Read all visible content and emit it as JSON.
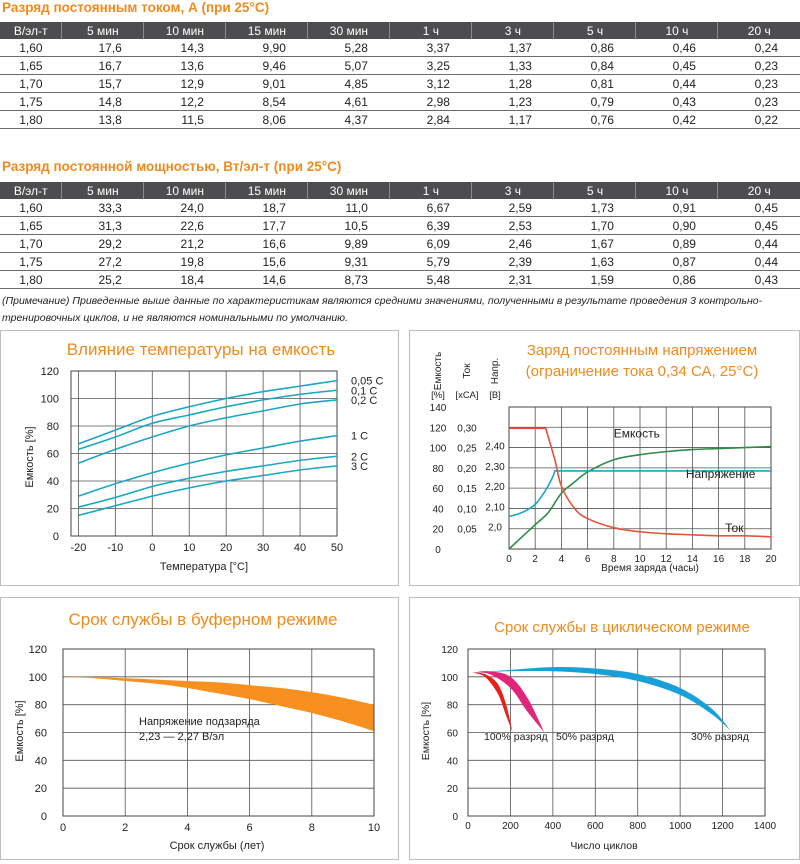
{
  "table_current": {
    "title": "Разряд постоянным током, А (при 25°С)",
    "headers": [
      "В/эл-т",
      "5 мин",
      "10 мин",
      "15 мин",
      "30 мин",
      "1 ч",
      "3 ч",
      "5 ч",
      "10 ч",
      "20 ч"
    ],
    "rows": [
      [
        "1,60",
        "17,6",
        "14,3",
        "9,90",
        "5,28",
        "3,37",
        "1,37",
        "0,86",
        "0,46",
        "0,24"
      ],
      [
        "1,65",
        "16,7",
        "13,6",
        "9,46",
        "5,07",
        "3,25",
        "1,33",
        "0,84",
        "0,45",
        "0,23"
      ],
      [
        "1,70",
        "15,7",
        "12,9",
        "9,01",
        "4,85",
        "3,12",
        "1,28",
        "0,81",
        "0,44",
        "0,23"
      ],
      [
        "1,75",
        "14,8",
        "12,2",
        "8,54",
        "4,61",
        "2,98",
        "1,23",
        "0,79",
        "0,43",
        "0,23"
      ],
      [
        "1,80",
        "13,8",
        "11,5",
        "8,06",
        "4,37",
        "2,84",
        "1,17",
        "0,76",
        "0,42",
        "0,22"
      ]
    ]
  },
  "table_power": {
    "title": "Разряд постоянной мощностью, Вт/эл-т (при 25°С)",
    "headers": [
      "В/эл-т",
      "5 мин",
      "10 мин",
      "15 мин",
      "30 мин",
      "1 ч",
      "3 ч",
      "5 ч",
      "10 ч",
      "20 ч"
    ],
    "rows": [
      [
        "1,60",
        "33,3",
        "24,0",
        "18,7",
        "11,0",
        "6,67",
        "2,59",
        "1,73",
        "0,91",
        "0,45"
      ],
      [
        "1,65",
        "31,3",
        "22,6",
        "17,7",
        "10,5",
        "6,39",
        "2,53",
        "1,70",
        "0,90",
        "0,45"
      ],
      [
        "1,70",
        "29,2",
        "21,2",
        "16,6",
        "9,89",
        "6,09",
        "2,46",
        "1,67",
        "0,89",
        "0,44"
      ],
      [
        "1,75",
        "27,2",
        "19,8",
        "15,6",
        "9,31",
        "5,79",
        "2,39",
        "1,63",
        "0,87",
        "0,44"
      ],
      [
        "1,80",
        "25,2",
        "18,4",
        "14,6",
        "8,73",
        "5,48",
        "2,31",
        "1,59",
        "0,86",
        "0,43"
      ]
    ]
  },
  "note": "(Примечание) Приведенные выше данные по характеристикам являются средними значениями, полученными в результате проведения 3 контрольно-тренировочных циклов, и не являются номинальными по умолчанию.",
  "colors": {
    "accent": "#f08a1c",
    "header_bg": "#4d4d4f",
    "teal": "#1aa6c4",
    "green": "#2e8b4a",
    "red": "#e8503a",
    "orange_band": "#f7901e",
    "cyc_red": "#e8201e",
    "cyc_magenta": "#e0257a",
    "cyc_blue": "#1aa0d8"
  },
  "chart_data": [
    {
      "type": "line",
      "title": "Влияние температуры на емкость",
      "xlabel": "Температура [°С]",
      "ylabel": "Емкость [%]",
      "xlim": [
        -22,
        50
      ],
      "ylim": [
        0,
        120
      ],
      "x_ticks": [
        -20,
        -10,
        0,
        10,
        20,
        30,
        40,
        50
      ],
      "x_tick_labels": [
        "-20",
        "-10",
        "0",
        "10",
        "20",
        "30",
        "40",
        "50"
      ],
      "y_ticks": [
        0,
        20,
        40,
        60,
        80,
        100,
        120
      ],
      "grid": true,
      "x": [
        -20,
        -10,
        0,
        10,
        20,
        30,
        40,
        50
      ],
      "series": [
        {
          "name": "0,05 С",
          "values": [
            67,
            77,
            87,
            94,
            100,
            105,
            109,
            113
          ]
        },
        {
          "name": "0,1 С",
          "values": [
            63,
            72,
            82,
            88,
            94,
            99,
            103,
            106
          ]
        },
        {
          "name": "0,2 С",
          "values": [
            53,
            63,
            72,
            80,
            86,
            91,
            96,
            99
          ]
        },
        {
          "name": "1 С",
          "values": [
            29,
            38,
            46,
            53,
            59,
            64,
            69,
            73
          ]
        },
        {
          "name": "2 С",
          "values": [
            21,
            28,
            36,
            42,
            47,
            51,
            55,
            58
          ]
        },
        {
          "name": "3 С",
          "values": [
            15,
            22,
            29,
            35,
            40,
            44,
            48,
            51
          ]
        }
      ]
    },
    {
      "type": "line",
      "title": "Заряд постоянным напряжением",
      "subtitle": "(ограничение тока 0,34 СА, 25°С)",
      "xlabel": "Время заряда (часы)",
      "axis_headers": [
        {
          "name": "Емкость",
          "unit": "[%]"
        },
        {
          "name": "Ток",
          "unit": "[хСА]"
        },
        {
          "name": "Напр.",
          "unit": "[В]"
        }
      ],
      "xlim": [
        0,
        20
      ],
      "x_ticks": [
        0,
        2,
        4,
        6,
        8,
        10,
        12,
        14,
        16,
        18,
        20
      ],
      "y_capacity_ticks": [
        0,
        20,
        40,
        60,
        80,
        100,
        120,
        140
      ],
      "y_current_ticks": [
        "0,05",
        "0,10",
        "0,15",
        "0,20",
        "0,25",
        "0,30"
      ],
      "y_voltage_ticks": [
        "2,0",
        "2,10",
        "2,20",
        "2,30",
        "2,40"
      ],
      "grid": true,
      "series": [
        {
          "name": "Емкость",
          "axis": "capacity_pct",
          "x": [
            0,
            1,
            2,
            3,
            4,
            5,
            6,
            8,
            10,
            12,
            14,
            16,
            18,
            20
          ],
          "values": [
            0,
            12,
            24,
            36,
            55,
            66,
            76,
            88,
            93,
            96,
            98,
            99,
            100,
            101
          ]
        },
        {
          "name": "Напряжение",
          "axis": "capacity_pct",
          "x": [
            0,
            1,
            2,
            2.8,
            3.3,
            3.5,
            20
          ],
          "values": [
            32,
            36,
            44,
            58,
            70,
            77,
            77
          ]
        },
        {
          "name": "Ток",
          "axis": "capacity_pct",
          "x": [
            0,
            1,
            2,
            2.8,
            3.5,
            4,
            5,
            6,
            8,
            10,
            12,
            14,
            16,
            18,
            20
          ],
          "values": [
            119,
            119,
            119,
            119,
            88,
            62,
            40,
            30,
            21,
            17,
            15,
            14,
            13,
            13,
            12
          ]
        }
      ]
    },
    {
      "type": "area",
      "title": "Срок службы в буферном режиме",
      "xlabel": "Срок службы (лет)",
      "ylabel": "Емкость [%]",
      "xlim": [
        0,
        10
      ],
      "ylim": [
        0,
        120
      ],
      "x_ticks": [
        0,
        2,
        4,
        6,
        8,
        10
      ],
      "y_ticks": [
        0,
        20,
        40,
        60,
        80,
        100,
        120
      ],
      "grid": true,
      "annotation": "Напряжение подзаряда\n2,23 — 2,27 В/эл",
      "x": [
        0,
        1,
        2,
        3,
        4,
        5,
        6,
        7,
        8,
        9,
        10
      ],
      "series": [
        {
          "name": "upper",
          "values": [
            100,
            100,
            99,
            98,
            97,
            96,
            94,
            92,
            89,
            85,
            80
          ]
        },
        {
          "name": "lower",
          "values": [
            100,
            99,
            97,
            95,
            92,
            88,
            84,
            79,
            74,
            68,
            61
          ]
        }
      ]
    },
    {
      "type": "area",
      "title": "Срок службы в циклическом режиме",
      "xlabel": "Число циклов",
      "ylabel": "Емкость [%]",
      "xlim": [
        0,
        1400
      ],
      "ylim": [
        0,
        120
      ],
      "x_ticks": [
        0,
        200,
        400,
        600,
        800,
        1000,
        1200,
        1400
      ],
      "y_ticks": [
        0,
        20,
        40,
        60,
        80,
        100,
        120
      ],
      "grid": true,
      "series": [
        {
          "name": "100% разряд",
          "x": [
            20,
            80,
            140,
            180,
            210
          ],
          "upper": [
            103,
            102,
            95,
            80,
            60
          ],
          "lower": [
            103,
            100,
            88,
            72,
            60
          ]
        },
        {
          "name": "50% разряд",
          "x": [
            20,
            100,
            200,
            280,
            360
          ],
          "upper": [
            103,
            104,
            100,
            85,
            60
          ],
          "lower": [
            103,
            102,
            92,
            75,
            60
          ]
        },
        {
          "name": "30% разряд",
          "x": [
            20,
            200,
            400,
            600,
            800,
            1000,
            1150,
            1240
          ],
          "upper": [
            103,
            105,
            107,
            106,
            102,
            92,
            77,
            61
          ],
          "lower": [
            103,
            104,
            104,
            102,
            97,
            87,
            73,
            61
          ]
        }
      ]
    }
  ]
}
